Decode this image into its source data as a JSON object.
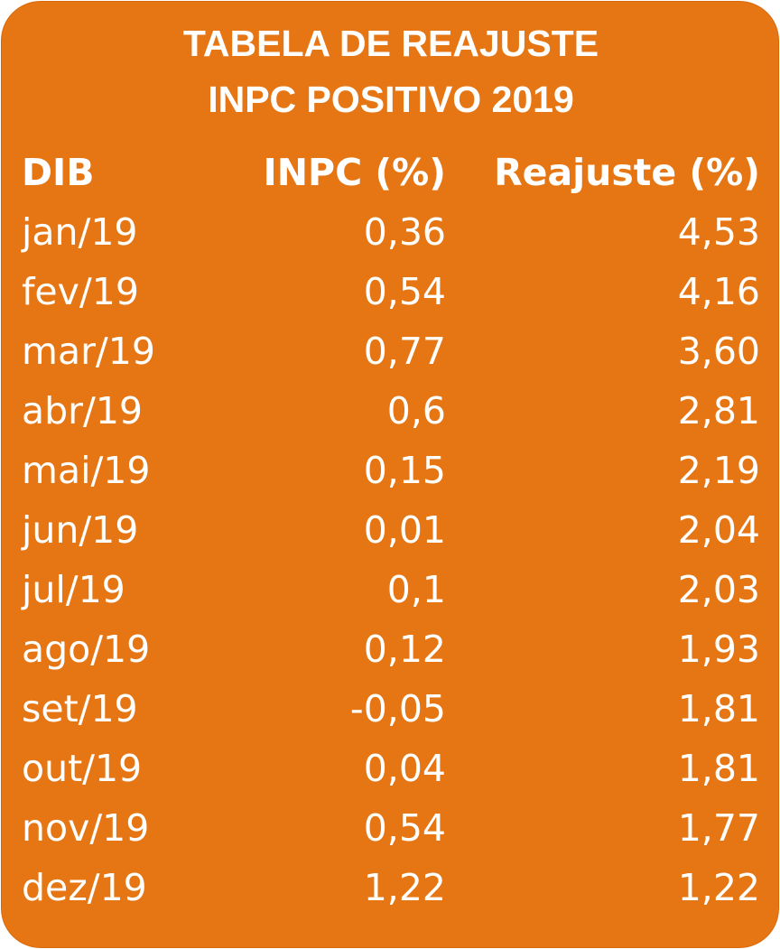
{
  "title": {
    "line1": "TABELA DE REAJUSTE",
    "line2": "INPC POSITIVO 2019"
  },
  "colors": {
    "background": "#E67613",
    "text": "#FFFFFF"
  },
  "table": {
    "headers": [
      "DIB",
      "INPC (%)",
      "Reajuste (%)"
    ],
    "rows": [
      [
        "jan/19",
        "0,36",
        "4,53"
      ],
      [
        "fev/19",
        "0,54",
        "4,16"
      ],
      [
        "mar/19",
        "0,77",
        "3,60"
      ],
      [
        "abr/19",
        "0,6",
        "2,81"
      ],
      [
        "mai/19",
        "0,15",
        "2,19"
      ],
      [
        "jun/19",
        "0,01",
        "2,04"
      ],
      [
        "jul/19",
        "0,1",
        "2,03"
      ],
      [
        "ago/19",
        "0,12",
        "1,93"
      ],
      [
        "set/19",
        "-0,05",
        "1,81"
      ],
      [
        "out/19",
        "0,04",
        "1,81"
      ],
      [
        "nov/19",
        "0,54",
        "1,77"
      ],
      [
        "dez/19",
        "1,22",
        "1,22"
      ]
    ]
  }
}
